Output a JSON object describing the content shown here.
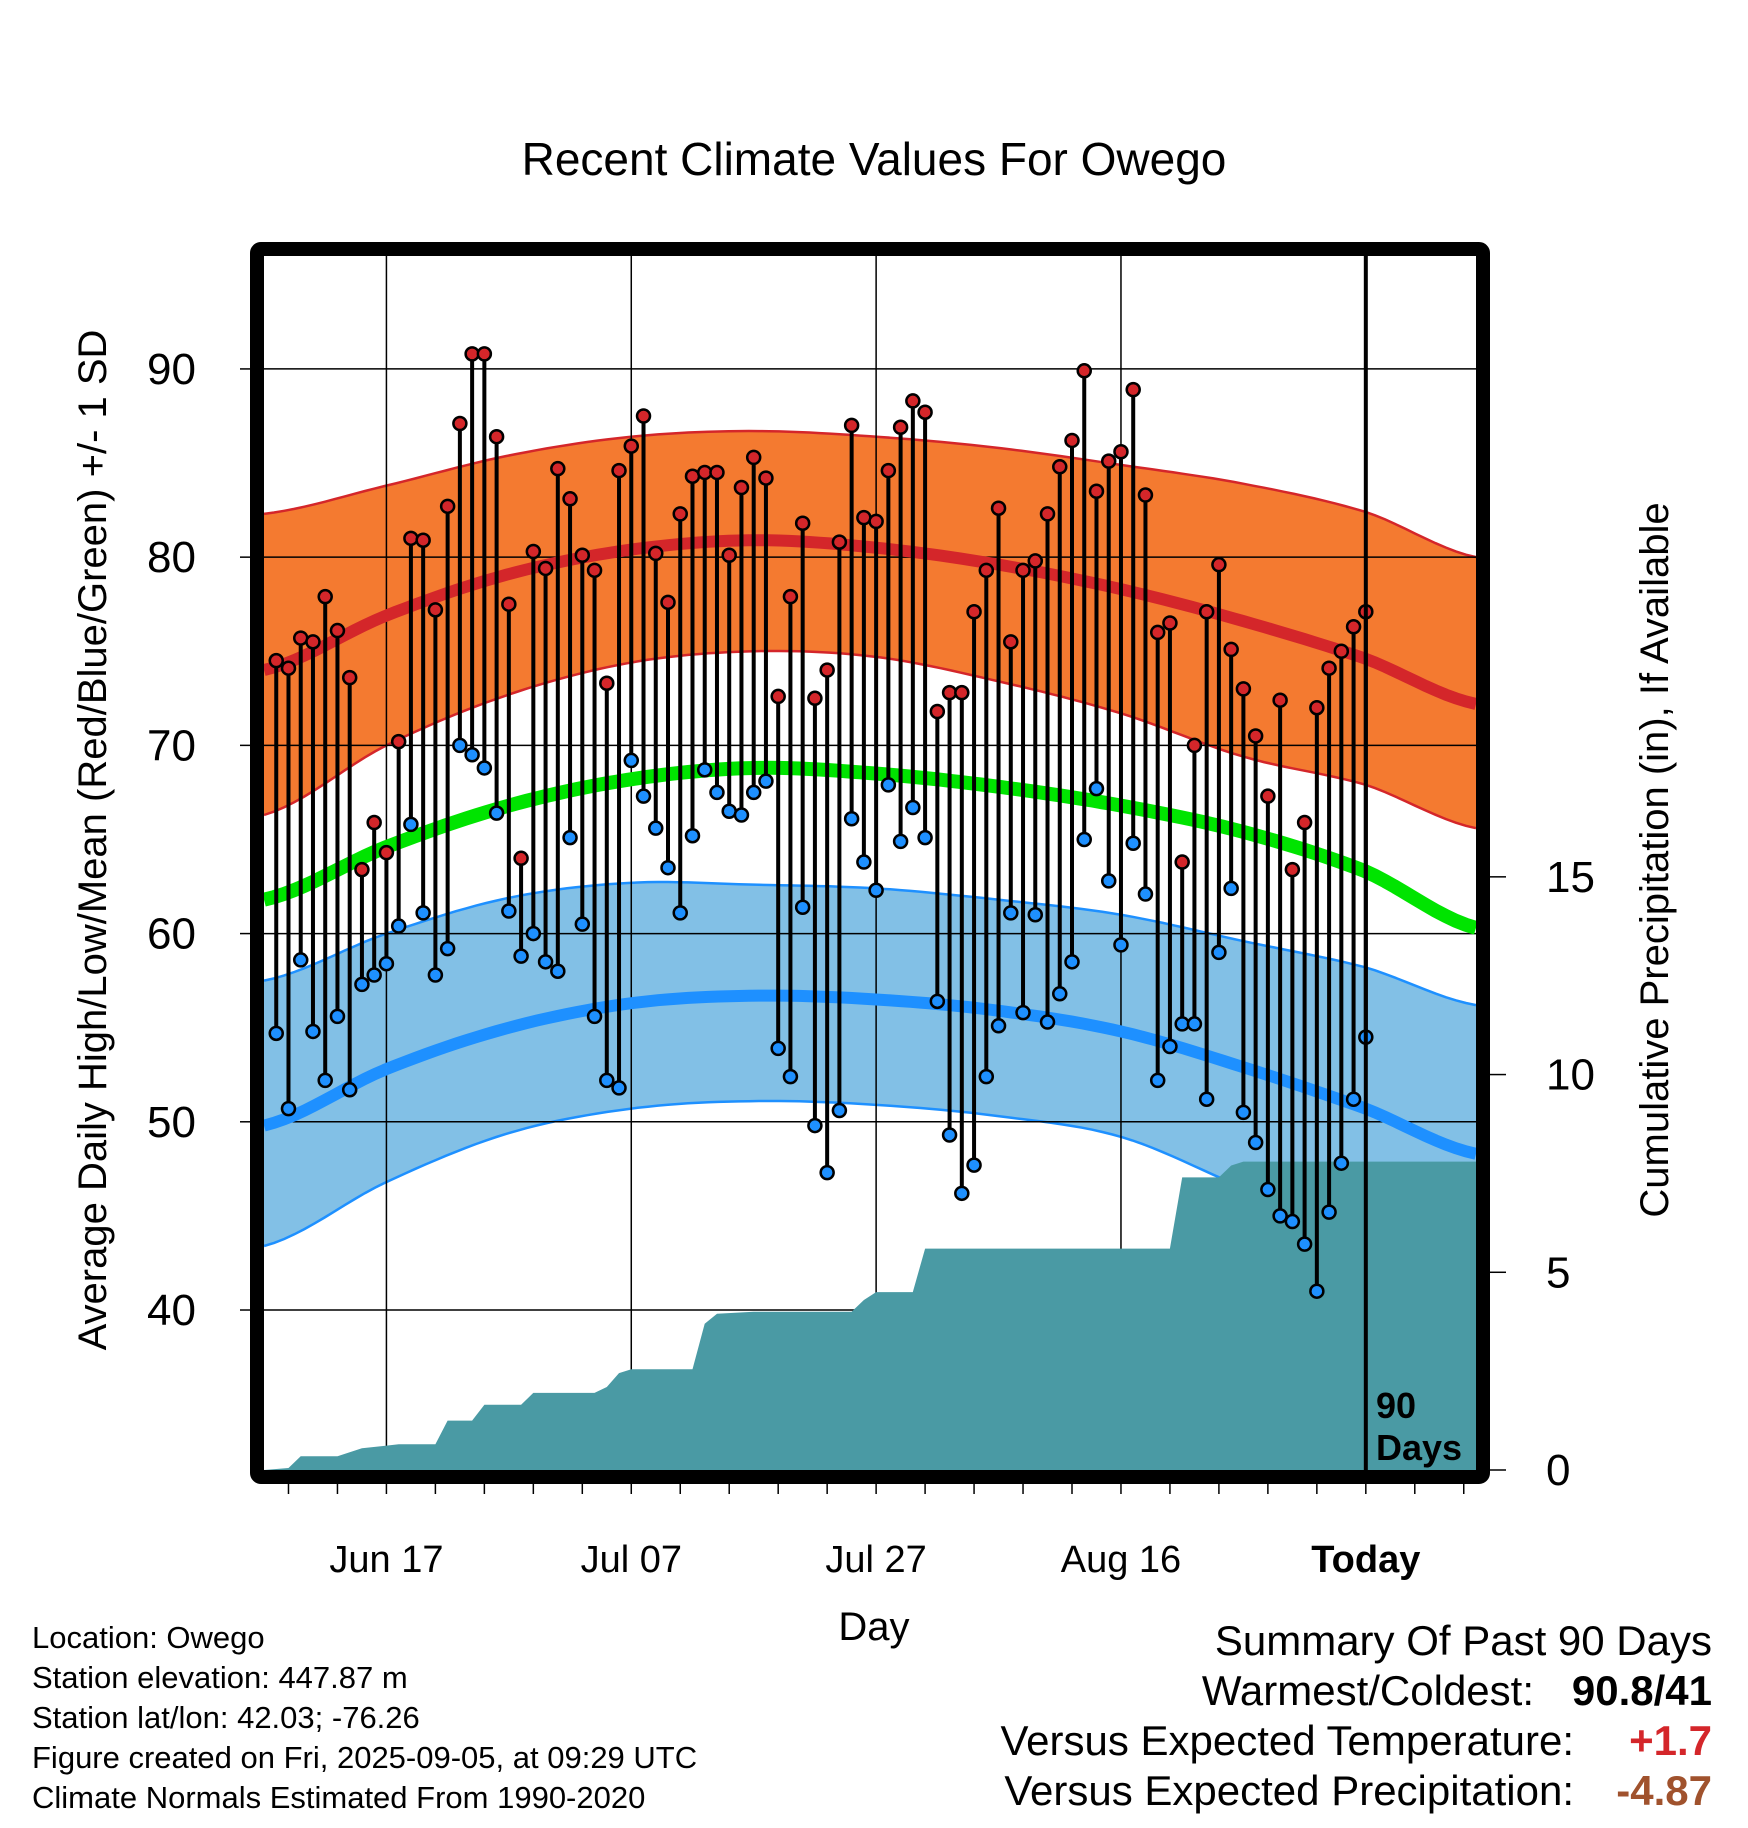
{
  "chart_data": {
    "type": "line",
    "title": "Recent Climate Values For Owego",
    "xlabel": "Day",
    "ylabel": "Average Daily High/Low/Mean (Red/Blue/Green) +/- 1 SD",
    "y2label": "Cumulative Precipitation (in), If Available",
    "x_tick_labels": [
      "Jun 17",
      "Jul 07",
      "Jul 27",
      "Aug 16",
      "Today"
    ],
    "x_tick_dates": [
      "2025-06-17",
      "2025-07-07",
      "2025-07-27",
      "2025-08-16",
      "2025-09-05"
    ],
    "xlim": [
      "2025-06-07",
      "2025-09-14"
    ],
    "today": "2025-09-05",
    "y_ticks": [
      40,
      50,
      60,
      70,
      80,
      90
    ],
    "ylim": [
      31.5,
      96
    ],
    "y2_ticks": [
      0,
      5,
      10,
      15
    ],
    "y2lim": [
      0,
      30.7
    ],
    "grid": true,
    "annotation": [
      "90",
      "Days"
    ],
    "colors": {
      "high_band": "#f47a30",
      "high_line": "#d4262a",
      "mean_line": "#00e400",
      "low_band": "#82c0e6",
      "low_line": "#1e90ff",
      "precip": "#4a9aa4",
      "high_dot": "#d4262a",
      "low_dot": "#1e90ff"
    },
    "normals": {
      "dates": [
        "2025-06-07",
        "2025-06-17",
        "2025-06-27",
        "2025-07-07",
        "2025-07-17",
        "2025-07-27",
        "2025-08-06",
        "2025-08-16",
        "2025-08-26",
        "2025-09-05",
        "2025-09-14"
      ],
      "high_mean": [
        74.0,
        76.9,
        79.1,
        80.4,
        80.9,
        80.5,
        79.6,
        78.3,
        76.6,
        74.6,
        72.2
      ],
      "high_upper": [
        82.3,
        83.8,
        85.4,
        86.4,
        86.7,
        86.4,
        85.8,
        84.9,
        83.9,
        82.4,
        80.0
      ],
      "high_lower": [
        66.3,
        70.0,
        72.7,
        74.4,
        75.0,
        74.7,
        73.4,
        71.7,
        69.4,
        67.9,
        65.6
      ],
      "mean": [
        61.8,
        64.6,
        66.8,
        68.2,
        68.8,
        68.5,
        67.8,
        66.8,
        65.4,
        63.3,
        60.3
      ],
      "low_mean": [
        49.8,
        52.8,
        55.0,
        56.3,
        56.7,
        56.5,
        55.9,
        54.8,
        52.9,
        50.7,
        48.3
      ],
      "low_upper": [
        57.5,
        60.0,
        61.9,
        62.7,
        62.6,
        62.4,
        61.8,
        61.0,
        59.6,
        58.2,
        56.2
      ],
      "low_lower": [
        43.4,
        46.8,
        49.4,
        50.7,
        51.1,
        50.9,
        50.3,
        49.2,
        46.5,
        44.0,
        41.9
      ]
    },
    "series": [
      {
        "name": "High",
        "start_date": "2025-06-08",
        "values": [
          74.5,
          74.1,
          75.7,
          75.5,
          77.9,
          76.1,
          73.6,
          63.4,
          65.9,
          64.3,
          70.2,
          81.0,
          80.9,
          77.2,
          82.7,
          87.1,
          90.8,
          90.8,
          86.4,
          77.5,
          64.0,
          80.3,
          79.4,
          84.7,
          83.1,
          80.1,
          79.3,
          73.3,
          84.6,
          85.9,
          87.5,
          80.2,
          77.6,
          82.3,
          84.3,
          84.5,
          84.5,
          80.1,
          83.7,
          85.3,
          84.2,
          72.6,
          77.9,
          81.8,
          72.5,
          74.0,
          80.8,
          87.0,
          82.1,
          81.9,
          84.6,
          86.9,
          88.3,
          87.7,
          71.8,
          72.8,
          72.8,
          77.1,
          79.3,
          82.6,
          75.5,
          79.3,
          79.8,
          82.3,
          84.8,
          86.2,
          89.9,
          83.5,
          85.1,
          85.6,
          88.9,
          83.3,
          76.0,
          76.5,
          63.8,
          70.0,
          77.1,
          79.6,
          75.1,
          73.0,
          70.5,
          67.3,
          72.4,
          63.4,
          65.9,
          72.0,
          74.1,
          75.0,
          76.3,
          77.1
        ]
      },
      {
        "name": "Low",
        "start_date": "2025-06-08",
        "values": [
          54.7,
          50.7,
          58.6,
          54.8,
          52.2,
          55.6,
          51.7,
          57.3,
          57.8,
          58.4,
          60.4,
          65.8,
          61.1,
          57.8,
          59.2,
          70.0,
          69.5,
          68.8,
          66.4,
          61.2,
          58.8,
          60.0,
          58.5,
          58.0,
          65.1,
          60.5,
          55.6,
          52.2,
          51.8,
          69.2,
          67.3,
          65.6,
          63.5,
          61.1,
          65.2,
          68.7,
          67.5,
          66.5,
          66.3,
          67.5,
          68.1,
          53.9,
          52.4,
          61.4,
          49.8,
          47.3,
          50.6,
          66.1,
          63.8,
          62.3,
          67.9,
          64.9,
          66.7,
          65.1,
          56.4,
          49.3,
          46.2,
          47.7,
          52.4,
          55.1,
          61.1,
          55.8,
          61.0,
          55.3,
          56.8,
          58.5,
          65.0,
          67.7,
          62.8,
          59.4,
          64.8,
          62.1,
          52.2,
          54.0,
          55.2,
          55.2,
          51.2,
          59.0,
          62.4,
          50.5,
          48.9,
          46.4,
          45.0,
          44.7,
          43.5,
          41.0,
          45.2,
          47.8,
          51.2,
          54.5
        ]
      },
      {
        "name": "Cumulative Precipitation",
        "dates": [
          "2025-06-07",
          "2025-06-09",
          "2025-06-10",
          "2025-06-13",
          "2025-06-15",
          "2025-06-18",
          "2025-06-21",
          "2025-06-22",
          "2025-06-24",
          "2025-06-25",
          "2025-06-28",
          "2025-06-29",
          "2025-07-04",
          "2025-07-05",
          "2025-07-06",
          "2025-07-07",
          "2025-07-12",
          "2025-07-13",
          "2025-07-14",
          "2025-07-17",
          "2025-07-25",
          "2025-07-26",
          "2025-07-27",
          "2025-07-30",
          "2025-07-31",
          "2025-08-20",
          "2025-08-21",
          "2025-08-24",
          "2025-08-25",
          "2025-08-26",
          "2025-09-05",
          "2025-09-14"
        ],
        "values": [
          0.0,
          0.05,
          0.35,
          0.35,
          0.55,
          0.65,
          0.65,
          1.25,
          1.25,
          1.65,
          1.65,
          1.95,
          1.95,
          2.1,
          2.45,
          2.55,
          2.55,
          3.7,
          3.95,
          4.0,
          4.0,
          4.3,
          4.5,
          4.5,
          5.6,
          5.6,
          7.4,
          7.4,
          7.7,
          7.8,
          7.8,
          7.8
        ]
      }
    ]
  },
  "footer": {
    "location": "Location: Owego",
    "elevation": "Station elevation: 447.87 m",
    "latlon": "Station lat/lon: 42.03; -76.26",
    "created": "Figure created on Fri, 2025-09-05, at 09:29 UTC",
    "normals": "Climate Normals Estimated From 1990-2020"
  },
  "summary": {
    "heading": "Summary Of Past 90 Days",
    "warmest_label": "Warmest/Coldest:",
    "warmest_value": "90.8/41",
    "temp_label": "Versus Expected Temperature:",
    "temp_value": "+1.7",
    "temp_color": "#d4262a",
    "precip_label": "Versus Expected Precipitation:",
    "precip_value": "-4.87",
    "precip_color": "#a0522d"
  }
}
